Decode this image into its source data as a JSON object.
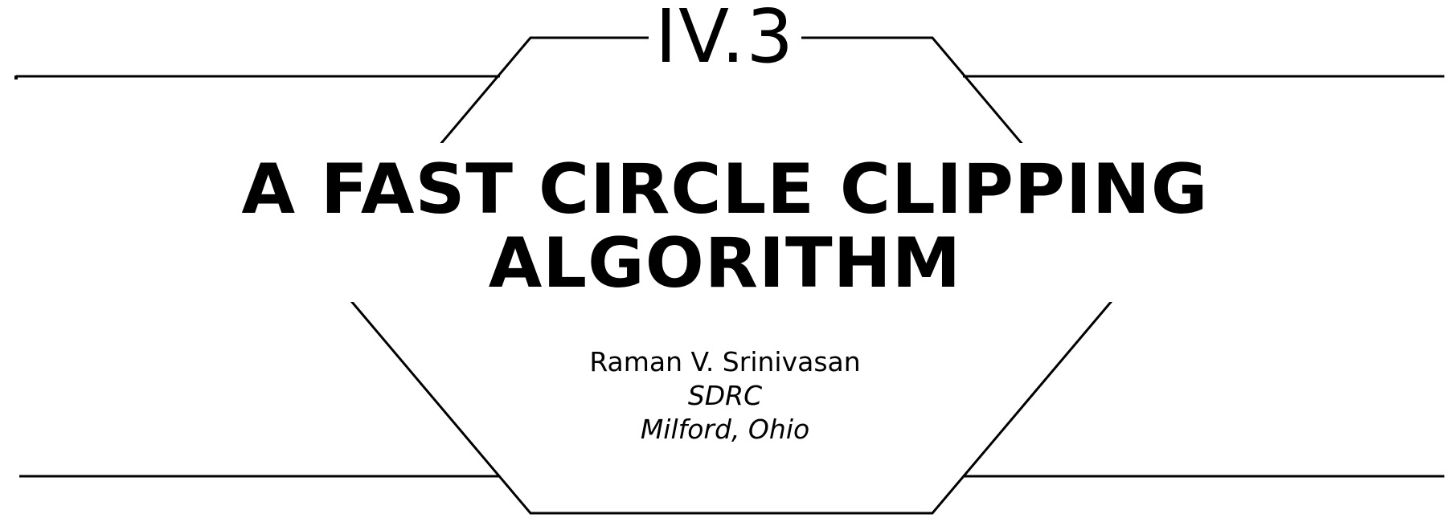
{
  "chapter": {
    "number": "IV.3"
  },
  "title": {
    "line1": "A FAST CIRCLE CLIPPING",
    "line2": "ALGORITHM"
  },
  "author": {
    "name": "Raman V. Srinivasan",
    "organization": "SDRC",
    "location": "Milford, Ohio"
  }
}
